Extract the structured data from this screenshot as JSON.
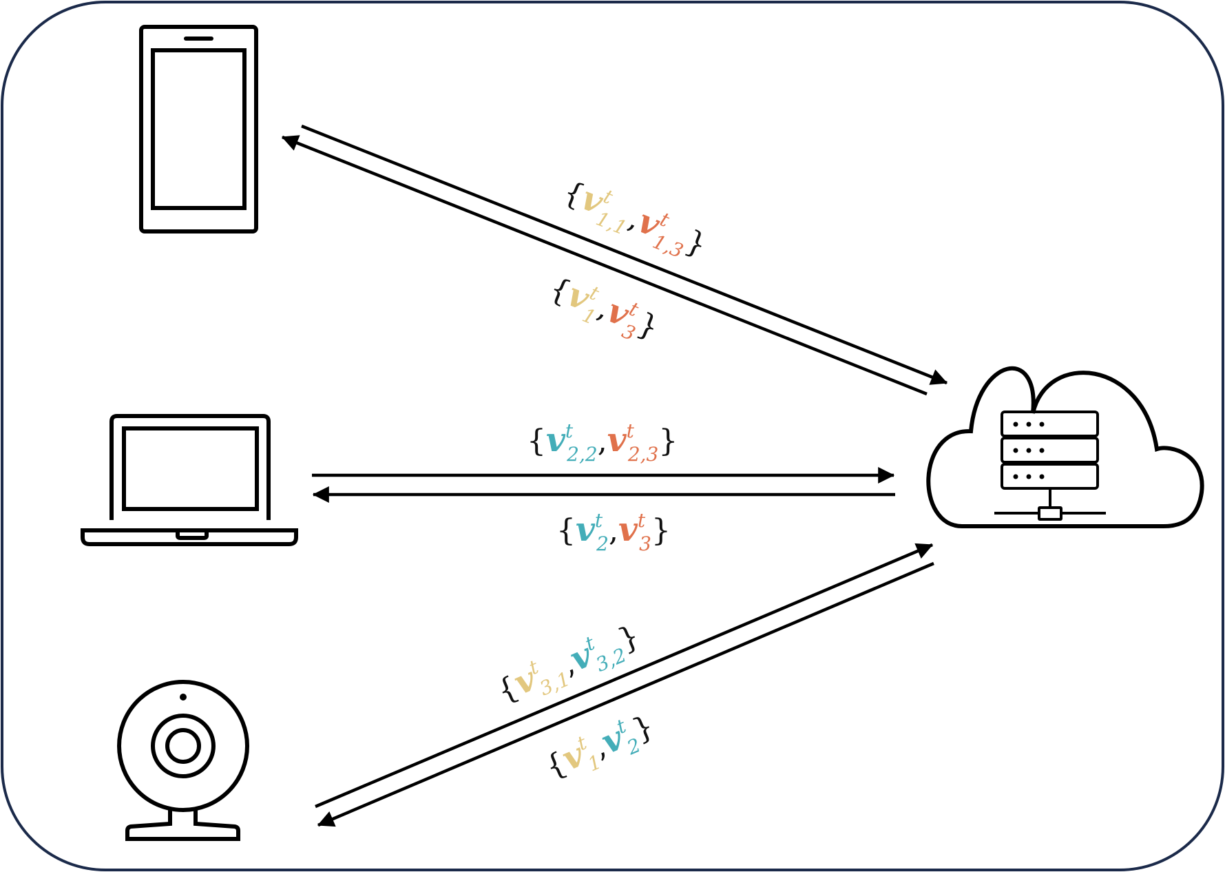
{
  "colors": {
    "frame": "#1b2a4a",
    "line": "#000000",
    "yellow": "#e2c77e",
    "orange": "#e0714b",
    "teal": "#43adb8"
  },
  "devices": [
    {
      "name": "smartphone",
      "icon": "smartphone-icon"
    },
    {
      "name": "laptop",
      "icon": "laptop-icon"
    },
    {
      "name": "webcam",
      "icon": "webcam-icon"
    }
  ],
  "server": {
    "icon": "cloud-server-icon"
  },
  "labels": {
    "phone_up": {
      "terms": [
        {
          "symbol": "v",
          "sub": "1,1",
          "sup": "t",
          "color": "yellow"
        },
        {
          "symbol": "v",
          "sub": "1,3",
          "sup": "t",
          "color": "orange"
        }
      ]
    },
    "phone_down": {
      "terms": [
        {
          "symbol": "v",
          "sub": "1",
          "sup": "t",
          "color": "yellow"
        },
        {
          "symbol": "v",
          "sub": "3",
          "sup": "t",
          "color": "orange"
        }
      ]
    },
    "laptop_up": {
      "terms": [
        {
          "symbol": "v",
          "sub": "2,2",
          "sup": "t",
          "color": "teal"
        },
        {
          "symbol": "v",
          "sub": "2,3",
          "sup": "t",
          "color": "orange"
        }
      ]
    },
    "laptop_down": {
      "terms": [
        {
          "symbol": "v",
          "sub": "2",
          "sup": "t",
          "color": "teal"
        },
        {
          "symbol": "v",
          "sub": "3",
          "sup": "t",
          "color": "orange"
        }
      ]
    },
    "webcam_up": {
      "terms": [
        {
          "symbol": "v",
          "sub": "3,1",
          "sup": "t",
          "color": "yellow"
        },
        {
          "symbol": "v",
          "sub": "3,2",
          "sup": "t",
          "color": "teal"
        }
      ]
    },
    "webcam_down": {
      "terms": [
        {
          "symbol": "v",
          "sub": "1",
          "sup": "t",
          "color": "yellow"
        },
        {
          "symbol": "v",
          "sub": "2",
          "sup": "t",
          "color": "teal"
        }
      ]
    }
  }
}
